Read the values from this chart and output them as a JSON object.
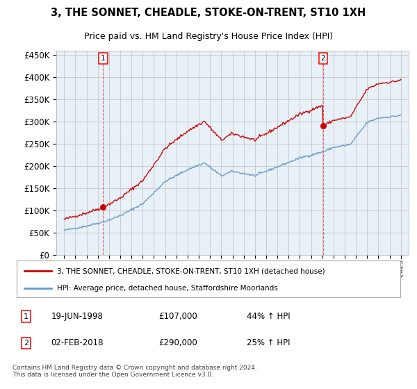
{
  "title": "3, THE SONNET, CHEADLE, STOKE-ON-TRENT, ST10 1XH",
  "subtitle": "Price paid vs. HM Land Registry's House Price Index (HPI)",
  "legend_line1": "3, THE SONNET, CHEADLE, STOKE-ON-TRENT, ST10 1XH (detached house)",
  "legend_line2": "HPI: Average price, detached house, Staffordshire Moorlands",
  "annotation1_date": "19-JUN-1998",
  "annotation1_price": "£107,000",
  "annotation1_hpi": "44% ↑ HPI",
  "annotation2_date": "02-FEB-2018",
  "annotation2_price": "£290,000",
  "annotation2_hpi": "25% ↑ HPI",
  "footer": "Contains HM Land Registry data © Crown copyright and database right 2024.\nThis data is licensed under the Open Government Licence v3.0.",
  "ylim": [
    0,
    460000
  ],
  "yticks": [
    0,
    50000,
    100000,
    150000,
    200000,
    250000,
    300000,
    350000,
    400000,
    450000
  ],
  "sale1_year": 1998.47,
  "sale1_price": 107000,
  "sale2_year": 2018.08,
  "sale2_price": 290000,
  "hpi_color": "#6699cc",
  "price_color": "#cc0000",
  "bg_color": "#e8f0f8",
  "grid_color": "#cccccc"
}
